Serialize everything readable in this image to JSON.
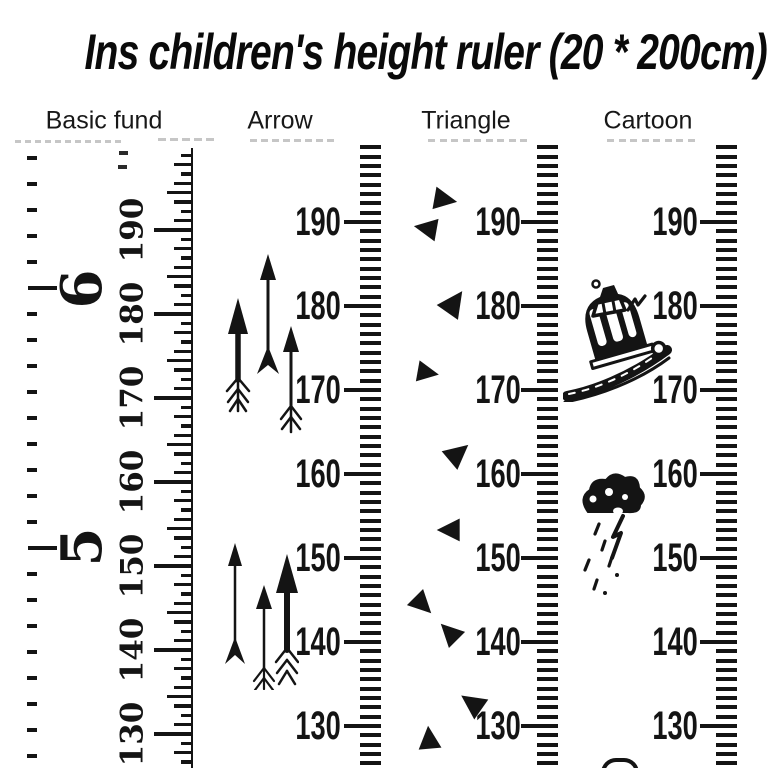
{
  "title": "Ins children's height ruler (20 * 200cm)",
  "columns": [
    {
      "label": "Basic fund"
    },
    {
      "label": "Arrow"
    },
    {
      "label": "Triangle"
    },
    {
      "label": "Cartoon"
    }
  ],
  "scale": {
    "height_labels": [
      "190",
      "180",
      "170",
      "160",
      "150",
      "140",
      "130"
    ],
    "basic_large_numbers": [
      "6",
      "5"
    ]
  },
  "icons": {
    "triangle_glyph": "▲",
    "arrow_doodle": "hand-drawn-up-arrow",
    "car_doodle": "cartoon-car-on-road",
    "storm_cloud_doodle": "cloud-with-lightning-and-rain",
    "bird_doodle": "small-bird-check"
  },
  "colors": {
    "ink": "#141414",
    "background": "#ffffff"
  }
}
